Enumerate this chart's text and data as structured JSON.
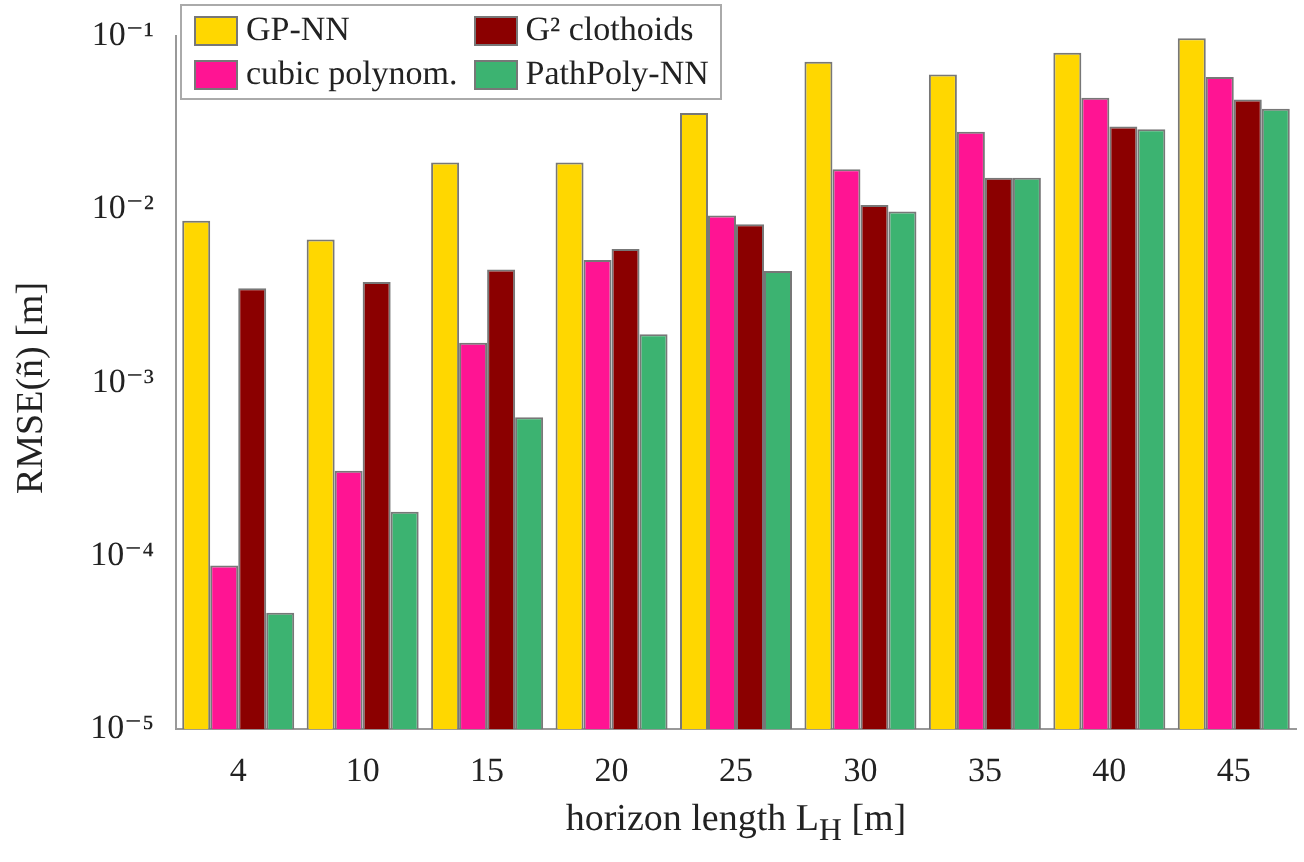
{
  "chart_data": {
    "type": "bar",
    "xlabel": "horizon length L$_{H}$ [m]",
    "ylabel": "RMSE(ñ) [m]",
    "categories": [
      "4",
      "10",
      "15",
      "20",
      "25",
      "30",
      "35",
      "40",
      "45"
    ],
    "series": [
      {
        "name": "GP-NN",
        "color": "#ffd700",
        "values": [
          0.0086,
          0.0067,
          0.0186,
          0.0186,
          0.036,
          0.071,
          0.06,
          0.08,
          0.097
        ]
      },
      {
        "name": "cubic polynom.",
        "color": "#ff1493",
        "values": [
          8.8e-05,
          0.00031,
          0.0017,
          0.0051,
          0.0092,
          0.017,
          0.028,
          0.044,
          0.058
        ]
      },
      {
        "name": "G² clothoids",
        "color": "#8b0000",
        "values": [
          0.0035,
          0.0038,
          0.0045,
          0.0059,
          0.0082,
          0.0106,
          0.0152,
          0.03,
          0.043
        ]
      },
      {
        "name": "PathPoly-NN",
        "color": "#3cb371",
        "values": [
          4.7e-05,
          0.00018,
          0.00063,
          0.0019,
          0.0044,
          0.0097,
          0.0152,
          0.029,
          0.038
        ]
      }
    ],
    "log": "y",
    "ylim": [
      1e-05,
      0.1
    ],
    "yticks": [
      {
        "value": 1e-05,
        "label": "10⁻⁵"
      },
      {
        "value": 0.0001,
        "label": "10⁻⁴"
      },
      {
        "value": 0.001,
        "label": "10⁻³"
      },
      {
        "value": 0.01,
        "label": "10⁻²"
      },
      {
        "value": 0.1,
        "label": "10⁻¹"
      }
    ],
    "grid": false,
    "legend": "top left"
  }
}
